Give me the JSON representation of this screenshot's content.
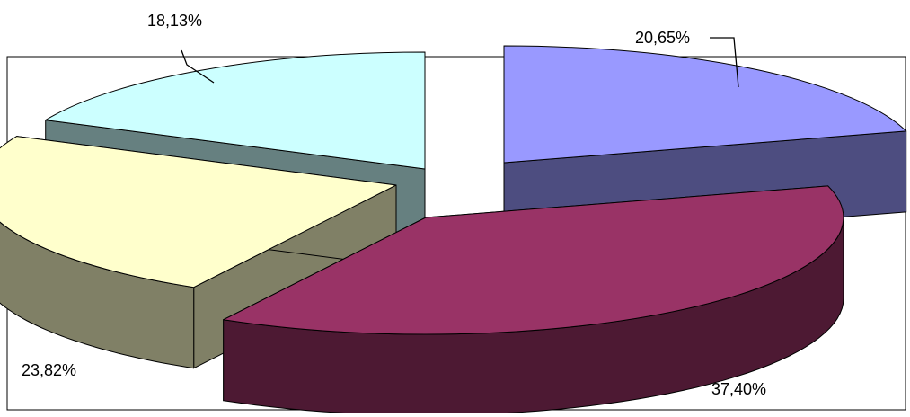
{
  "chart_data": {
    "type": "pie",
    "style": "3d-exploded",
    "title": "",
    "legend": "none",
    "categories": [
      "",
      "",
      "",
      ""
    ],
    "values": [
      20.65,
      37.4,
      23.82,
      18.13
    ],
    "data_labels": [
      "20,65%",
      "37,40%",
      "23,82%",
      "18,13%"
    ],
    "colors": {
      "top": [
        "#9999ff",
        "#993366",
        "#ffffcc",
        "#ccffff"
      ],
      "side": [
        "#4d4d80",
        "#4d1933",
        "#808066",
        "#668080"
      ]
    }
  }
}
